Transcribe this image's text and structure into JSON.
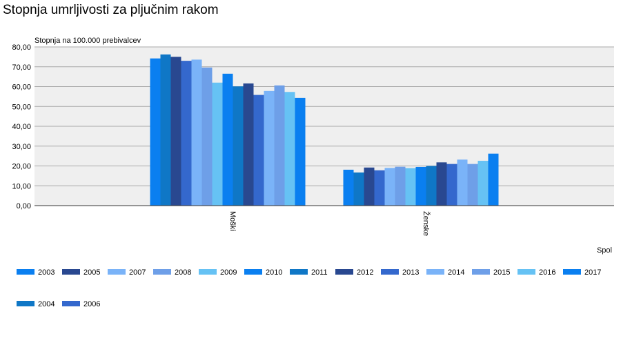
{
  "chart_data": {
    "type": "bar",
    "title": "Stopnja umrljivosti za pljučnim rakom",
    "ylabel": "Stopnja na 100.000 prebivalcev",
    "xlabel": "Spol",
    "ylim": [
      0,
      80
    ],
    "yticks": [
      "0,00",
      "10,00",
      "20,00",
      "30,00",
      "40,00",
      "50,00",
      "60,00",
      "70,00",
      "80,00"
    ],
    "categories": [
      "Moški",
      "Ženske"
    ],
    "series": [
      {
        "name": "2003",
        "color": "#0a7ff0",
        "values": [
          74.2,
          18.1
        ]
      },
      {
        "name": "2004",
        "color": "#0f77c6",
        "values": [
          76.2,
          16.7
        ]
      },
      {
        "name": "2005",
        "color": "#294890",
        "values": [
          75.0,
          19.2
        ]
      },
      {
        "name": "2006",
        "color": "#3468cd",
        "values": [
          73.0,
          17.8
        ]
      },
      {
        "name": "2007",
        "color": "#7ab3f8",
        "values": [
          73.6,
          19.0
        ]
      },
      {
        "name": "2008",
        "color": "#6e9fe8",
        "values": [
          69.6,
          19.6
        ]
      },
      {
        "name": "2009",
        "color": "#66c2f4",
        "values": [
          62.0,
          18.9
        ]
      },
      {
        "name": "2010",
        "color": "#0a7ff0",
        "values": [
          66.5,
          19.5
        ]
      },
      {
        "name": "2011",
        "color": "#0f77c6",
        "values": [
          60.1,
          20.0
        ]
      },
      {
        "name": "2012",
        "color": "#294890",
        "values": [
          61.6,
          21.8
        ]
      },
      {
        "name": "2013",
        "color": "#3468cd",
        "values": [
          55.8,
          21.0
        ]
      },
      {
        "name": "2014",
        "color": "#7ab3f8",
        "values": [
          57.8,
          23.2
        ]
      },
      {
        "name": "2015",
        "color": "#6e9fe8",
        "values": [
          60.6,
          21.0
        ]
      },
      {
        "name": "2016",
        "color": "#66c2f4",
        "values": [
          57.3,
          22.6
        ]
      },
      {
        "name": "2017",
        "color": "#0a7ff0",
        "values": [
          54.3,
          26.2
        ]
      }
    ],
    "legend": {
      "placement": "bottom",
      "rows": [
        [
          "2003",
          "2005",
          "2007",
          "2008",
          "2009",
          "2010",
          "2011",
          "2012",
          "2013",
          "2014",
          "2015",
          "2016",
          "2017"
        ],
        [
          "2004",
          "2006"
        ]
      ]
    },
    "grid": true,
    "plot_background": "#efefef"
  }
}
